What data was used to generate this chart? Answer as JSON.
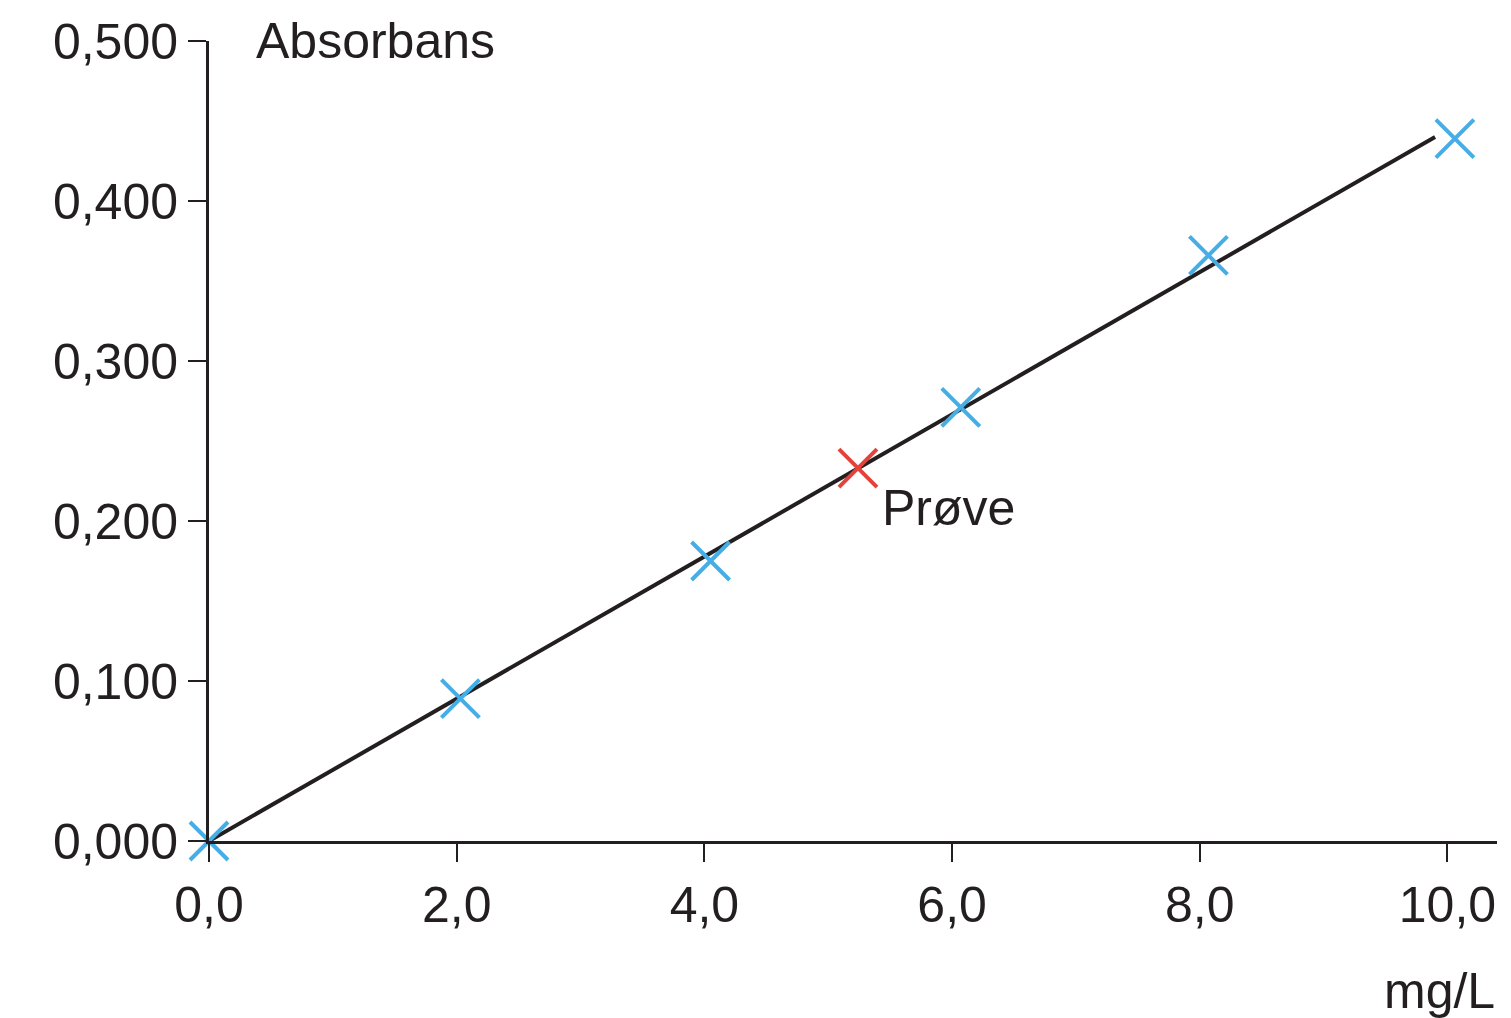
{
  "chart_data": {
    "type": "scatter",
    "grid": false,
    "xlabel": "mg/L",
    "ylabel": "Absorbans",
    "xlim": [
      0,
      10.4
    ],
    "ylim": [
      0,
      0.5
    ],
    "xticks": [
      {
        "value": 0,
        "label": "0,0"
      },
      {
        "value": 2,
        "label": "2,0"
      },
      {
        "value": 4,
        "label": "4,0"
      },
      {
        "value": 6,
        "label": "6,0"
      },
      {
        "value": 8,
        "label": "8,0"
      },
      {
        "value": 10,
        "label": "10,0"
      }
    ],
    "yticks": [
      {
        "value": 0,
        "label": "0,000"
      },
      {
        "value": 0.1,
        "label": "0,100"
      },
      {
        "value": 0.2,
        "label": "0,200"
      },
      {
        "value": 0.3,
        "label": "0,300"
      },
      {
        "value": 0.4,
        "label": "0,400"
      },
      {
        "value": 0.5,
        "label": "0,500"
      }
    ],
    "series": [
      {
        "type": "line",
        "color": "#231f20",
        "x": [
          0,
          9.9
        ],
        "values": [
          0,
          0.44
        ]
      },
      {
        "color": "#45aee6",
        "marker": "cross",
        "x": [
          0,
          2.03,
          4.05,
          6.07,
          8.07,
          10.06
        ],
        "values": [
          0,
          0.089,
          0.175,
          0.271,
          0.366,
          0.439
        ]
      },
      {
        "color": "#e5423c",
        "marker": "cross",
        "x": [
          5.24
        ],
        "values": [
          0.233
        ]
      }
    ],
    "annotations": [
      {
        "text": "Prøve",
        "x": 5.24,
        "y": 0.233
      }
    ]
  }
}
